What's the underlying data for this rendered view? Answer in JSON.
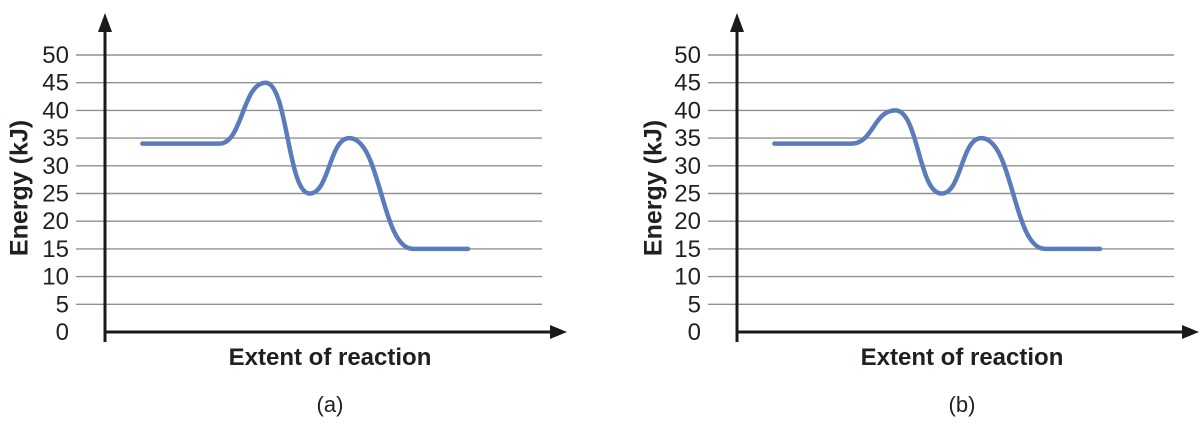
{
  "figure": {
    "description": "Two reaction coordinate (energy profile) diagrams shown side by side"
  },
  "chart_data": [
    {
      "type": "line",
      "panel_label": "(a)",
      "xlabel": "Extent of reaction",
      "ylabel": "Energy (kJ)",
      "yticks": [
        0,
        5,
        10,
        15,
        20,
        25,
        30,
        35,
        40,
        45,
        50
      ],
      "ylim": [
        0,
        50
      ],
      "grid": "horizontal",
      "curve_color": "#5b7cba",
      "grid_color": "#919191",
      "axis_color": "#1a1a1a",
      "text_color": "#231f20",
      "key_values": {
        "initial_energy_kJ": 34,
        "first_peak_kJ": 45,
        "valley_kJ": 25,
        "second_peak_kJ": 35,
        "final_energy_kJ": 15
      },
      "series": [
        {
          "name": "energy-profile",
          "points": [
            {
              "x": 0.085,
              "y": 34
            },
            {
              "x": 0.26,
              "y": 34
            },
            {
              "x": 0.365,
              "y": 45
            },
            {
              "x": 0.465,
              "y": 25
            },
            {
              "x": 0.555,
              "y": 35
            },
            {
              "x": 0.7,
              "y": 15
            },
            {
              "x": 0.825,
              "y": 15
            }
          ]
        }
      ]
    },
    {
      "type": "line",
      "panel_label": "(b)",
      "xlabel": "Extent of reaction",
      "ylabel": "Energy (kJ)",
      "yticks": [
        0,
        5,
        10,
        15,
        20,
        25,
        30,
        35,
        40,
        45,
        50
      ],
      "ylim": [
        0,
        50
      ],
      "grid": "horizontal",
      "curve_color": "#5b7cba",
      "grid_color": "#919191",
      "axis_color": "#1a1a1a",
      "text_color": "#231f20",
      "key_values": {
        "initial_energy_kJ": 34,
        "first_peak_kJ": 40,
        "valley_kJ": 25,
        "second_peak_kJ": 35,
        "final_energy_kJ": 15
      },
      "series": [
        {
          "name": "energy-profile",
          "points": [
            {
              "x": 0.085,
              "y": 34
            },
            {
              "x": 0.26,
              "y": 34
            },
            {
              "x": 0.36,
              "y": 40
            },
            {
              "x": 0.465,
              "y": 25
            },
            {
              "x": 0.555,
              "y": 35
            },
            {
              "x": 0.7,
              "y": 15
            },
            {
              "x": 0.825,
              "y": 15
            }
          ]
        }
      ]
    }
  ]
}
